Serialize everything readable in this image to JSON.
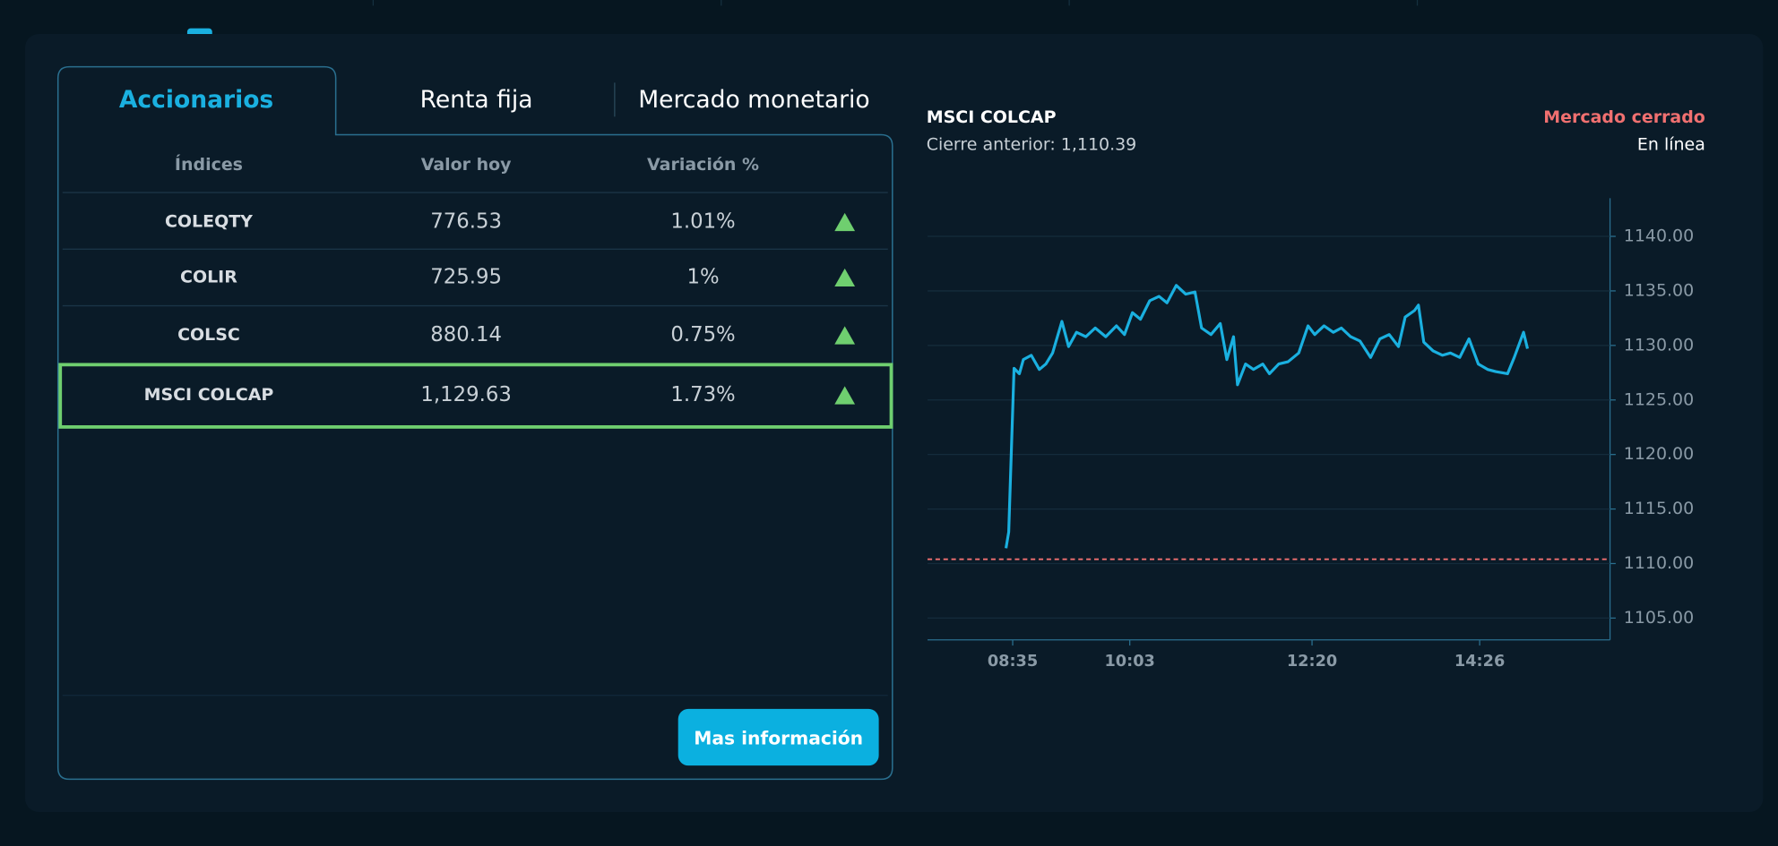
{
  "tabs": [
    "Accionarios",
    "Renta fija",
    "Mercado monetario"
  ],
  "active_tab": 0,
  "table": {
    "headers": [
      "Índices",
      "Valor hoy",
      "Variación %"
    ],
    "rows": [
      [
        "COLEQTY",
        "776.53",
        "1.01%"
      ],
      [
        "COLIR",
        "725.95",
        "1%"
      ],
      [
        "COLSC",
        "880.14",
        "0.75%"
      ],
      [
        "MSCI COLCAP",
        "1,129.63",
        "1.73%"
      ]
    ],
    "selected_row": 3
  },
  "button": "Mas información",
  "chart_data": {
    "type": "line",
    "title": "MSCI COLCAP",
    "subtitle": "Cierre anterior: 1,110.39",
    "status": "Mercado cerrado",
    "status_detail": "En línea",
    "reference_line": 1110.39,
    "reference_color": "#f07070",
    "x": [
      510,
      512,
      516,
      520,
      523,
      529,
      535,
      540,
      545,
      552,
      557,
      563,
      570,
      577,
      585,
      593,
      599,
      605,
      611,
      618,
      625,
      631,
      638,
      645,
      652,
      657,
      664,
      671,
      676,
      681,
      684,
      690,
      696,
      703,
      708,
      715,
      722,
      730,
      737,
      742,
      749,
      756,
      762,
      769,
      776,
      784,
      791,
      798,
      805,
      810,
      817,
      820,
      824,
      831,
      838,
      844,
      851,
      858,
      865,
      872,
      878,
      887,
      892,
      899,
      902
    ],
    "series": [
      {
        "color": "#1ab0e0",
        "values": [
          1111.4,
          1112.9,
          1127.9,
          1127.4,
          1128.7,
          1129.1,
          1127.8,
          1128.3,
          1129.3,
          1132.2,
          1129.9,
          1131.2,
          1130.8,
          1131.6,
          1130.8,
          1131.8,
          1131.0,
          1133.0,
          1132.4,
          1134.1,
          1134.5,
          1133.9,
          1135.5,
          1134.7,
          1134.9,
          1131.6,
          1131.0,
          1132.0,
          1128.7,
          1130.8,
          1126.4,
          1128.3,
          1127.8,
          1128.3,
          1127.4,
          1128.3,
          1128.5,
          1129.3,
          1131.8,
          1131.0,
          1131.8,
          1131.2,
          1131.6,
          1130.8,
          1130.4,
          1128.9,
          1130.6,
          1131.0,
          1129.9,
          1132.6,
          1133.2,
          1133.7,
          1130.3,
          1129.5,
          1129.1,
          1129.3,
          1128.9,
          1130.6,
          1128.3,
          1127.8,
          1127.6,
          1127.4,
          1128.9,
          1131.2,
          1129.7
        ]
      }
    ],
    "xlim": [
      451,
      964
    ],
    "xticks": [
      {
        "value": 515,
        "label": "08:35"
      },
      {
        "value": 603,
        "label": "10:03"
      },
      {
        "value": 740,
        "label": "12:20"
      },
      {
        "value": 866,
        "label": "14:26"
      }
    ],
    "ylim": [
      1103,
      1143.5
    ],
    "yticks": [
      {
        "value": 1105,
        "label": "1105.00"
      },
      {
        "value": 1110,
        "label": "1110.00"
      },
      {
        "value": 1115,
        "label": "1115.00"
      },
      {
        "value": 1120,
        "label": "1120.00"
      },
      {
        "value": 1125,
        "label": "1125.00"
      },
      {
        "value": 1130,
        "label": "1130.00"
      },
      {
        "value": 1135,
        "label": "1135.00"
      },
      {
        "value": 1140,
        "label": "1140.00"
      }
    ],
    "grid": true
  }
}
